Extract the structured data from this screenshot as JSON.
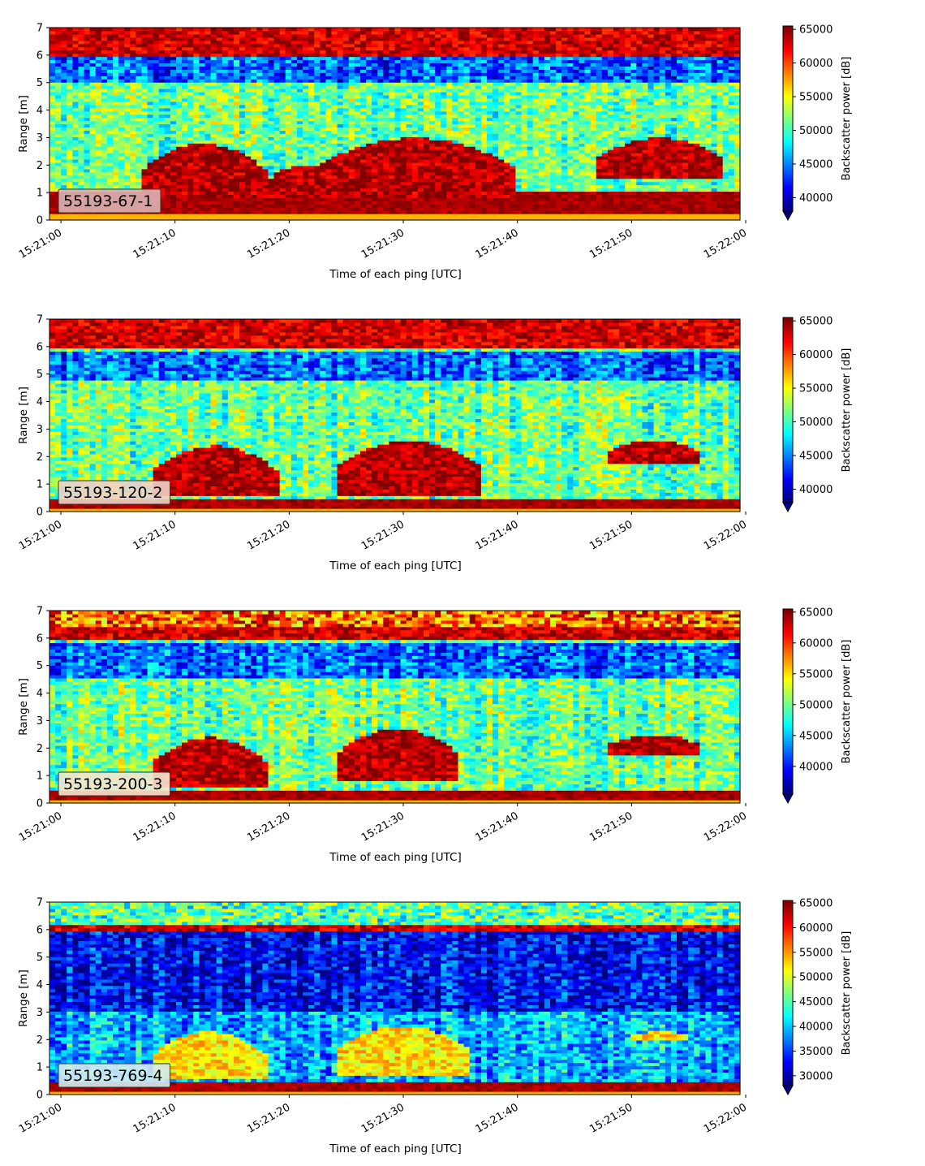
{
  "chart_data": [
    {
      "type": "heatmap",
      "panel_label": "55193-67-1",
      "xlabel": "Time of each ping [UTC]",
      "ylabel": "Range [m]",
      "xticks": [
        "15:21:00",
        "15:21:10",
        "15:21:20",
        "15:21:30",
        "15:21:40",
        "15:21:50",
        "15:22:00"
      ],
      "xlim": [
        "15:21:00",
        "15:22:00"
      ],
      "yticks": [
        0,
        1,
        2,
        3,
        4,
        5,
        6,
        7
      ],
      "ylim": [
        0,
        7
      ],
      "colorbar_label": "Backscatter power [dB]",
      "colorbar_ticks": [
        40000,
        45000,
        50000,
        55000,
        60000,
        65000
      ],
      "clim": [
        38000,
        65500
      ],
      "colormap": "jet",
      "features": {
        "bottom_band": [
          0.25,
          1.0
        ],
        "top_band": [
          6.0,
          7.0
        ],
        "blue_layer": [
          5.0,
          6.0
        ],
        "blobs": [
          {
            "t": [
              7,
              18
            ],
            "r": [
              0.8,
              2.8
            ]
          },
          {
            "t": [
              18,
              24
            ],
            "r": [
              0.8,
              2.0
            ]
          },
          {
            "t": [
              22,
              40
            ],
            "r": [
              0.8,
              3.0
            ]
          },
          {
            "t": [
              47,
              58
            ],
            "r": [
              1.5,
              3.0
            ]
          }
        ]
      }
    },
    {
      "type": "heatmap",
      "panel_label": "55193-120-2",
      "xlabel": "Time of each ping [UTC]",
      "ylabel": "Range [m]",
      "xticks": [
        "15:21:00",
        "15:21:10",
        "15:21:20",
        "15:21:30",
        "15:21:40",
        "15:21:50",
        "15:22:00"
      ],
      "xlim": [
        "15:21:00",
        "15:22:00"
      ],
      "yticks": [
        0,
        1,
        2,
        3,
        4,
        5,
        6,
        7
      ],
      "ylim": [
        0,
        7
      ],
      "colorbar_label": "Backscatter power [dB]",
      "colorbar_ticks": [
        40000,
        45000,
        50000,
        55000,
        60000,
        65000
      ],
      "clim": [
        38000,
        65500
      ],
      "colormap": "jet",
      "features": {
        "bottom_band": [
          0.1,
          0.5
        ],
        "top_band": [
          6.0,
          7.0
        ],
        "blue_layer": [
          4.8,
          5.8
        ],
        "blobs": [
          {
            "t": [
              8,
              19
            ],
            "r": [
              0.6,
              2.4
            ]
          },
          {
            "t": [
              24,
              37
            ],
            "r": [
              0.6,
              2.6
            ]
          },
          {
            "t": [
              48,
              56
            ],
            "r": [
              1.8,
              2.6
            ]
          }
        ]
      }
    },
    {
      "type": "heatmap",
      "panel_label": "55193-200-3",
      "xlabel": "Time of each ping [UTC]",
      "ylabel": "Range [m]",
      "xticks": [
        "15:21:00",
        "15:21:10",
        "15:21:20",
        "15:21:30",
        "15:21:40",
        "15:21:50",
        "15:22:00"
      ],
      "xlim": [
        "15:21:00",
        "15:22:00"
      ],
      "yticks": [
        0,
        1,
        2,
        3,
        4,
        5,
        6,
        7
      ],
      "ylim": [
        0,
        7
      ],
      "colorbar_label": "Backscatter power [dB]",
      "colorbar_ticks": [
        40000,
        45000,
        50000,
        55000,
        60000,
        65000
      ],
      "clim": [
        35500,
        65500
      ],
      "colormap": "jet",
      "features": {
        "bottom_band": [
          0.1,
          0.5
        ],
        "top_band": [
          5.9,
          6.4
        ],
        "blue_layer": [
          4.5,
          5.8
        ],
        "blobs": [
          {
            "t": [
              8,
              18
            ],
            "r": [
              0.6,
              2.4
            ]
          },
          {
            "t": [
              24,
              35
            ],
            "r": [
              0.8,
              2.7
            ]
          },
          {
            "t": [
              48,
              56
            ],
            "r": [
              1.8,
              2.5
            ]
          }
        ]
      }
    },
    {
      "type": "heatmap",
      "panel_label": "55193-769-4",
      "xlabel": "Time of each ping [UTC]",
      "ylabel": "Range [m]",
      "xticks": [
        "15:21:00",
        "15:21:10",
        "15:21:20",
        "15:21:30",
        "15:21:40",
        "15:21:50",
        "15:22:00"
      ],
      "xlim": [
        "15:21:00",
        "15:22:00"
      ],
      "yticks": [
        0,
        1,
        2,
        3,
        4,
        5,
        6,
        7
      ],
      "ylim": [
        0,
        7
      ],
      "colorbar_label": "Backscatter power [dB]",
      "colorbar_ticks": [
        30000,
        35000,
        40000,
        45000,
        50000,
        55000,
        60000,
        65000
      ],
      "clim": [
        28000,
        65500
      ],
      "colormap": "jet",
      "features": {
        "bottom_band": [
          0.1,
          0.45
        ],
        "top_band": [
          6.0,
          6.2
        ],
        "blue_layer": [
          3.0,
          5.9
        ],
        "blobs": [
          {
            "t": [
              8,
              18
            ],
            "r": [
              0.6,
              2.3
            ]
          },
          {
            "t": [
              24,
              36
            ],
            "r": [
              0.7,
              2.5
            ]
          },
          {
            "t": [
              50,
              55
            ],
            "r": [
              2.0,
              2.3
            ]
          }
        ]
      }
    }
  ]
}
